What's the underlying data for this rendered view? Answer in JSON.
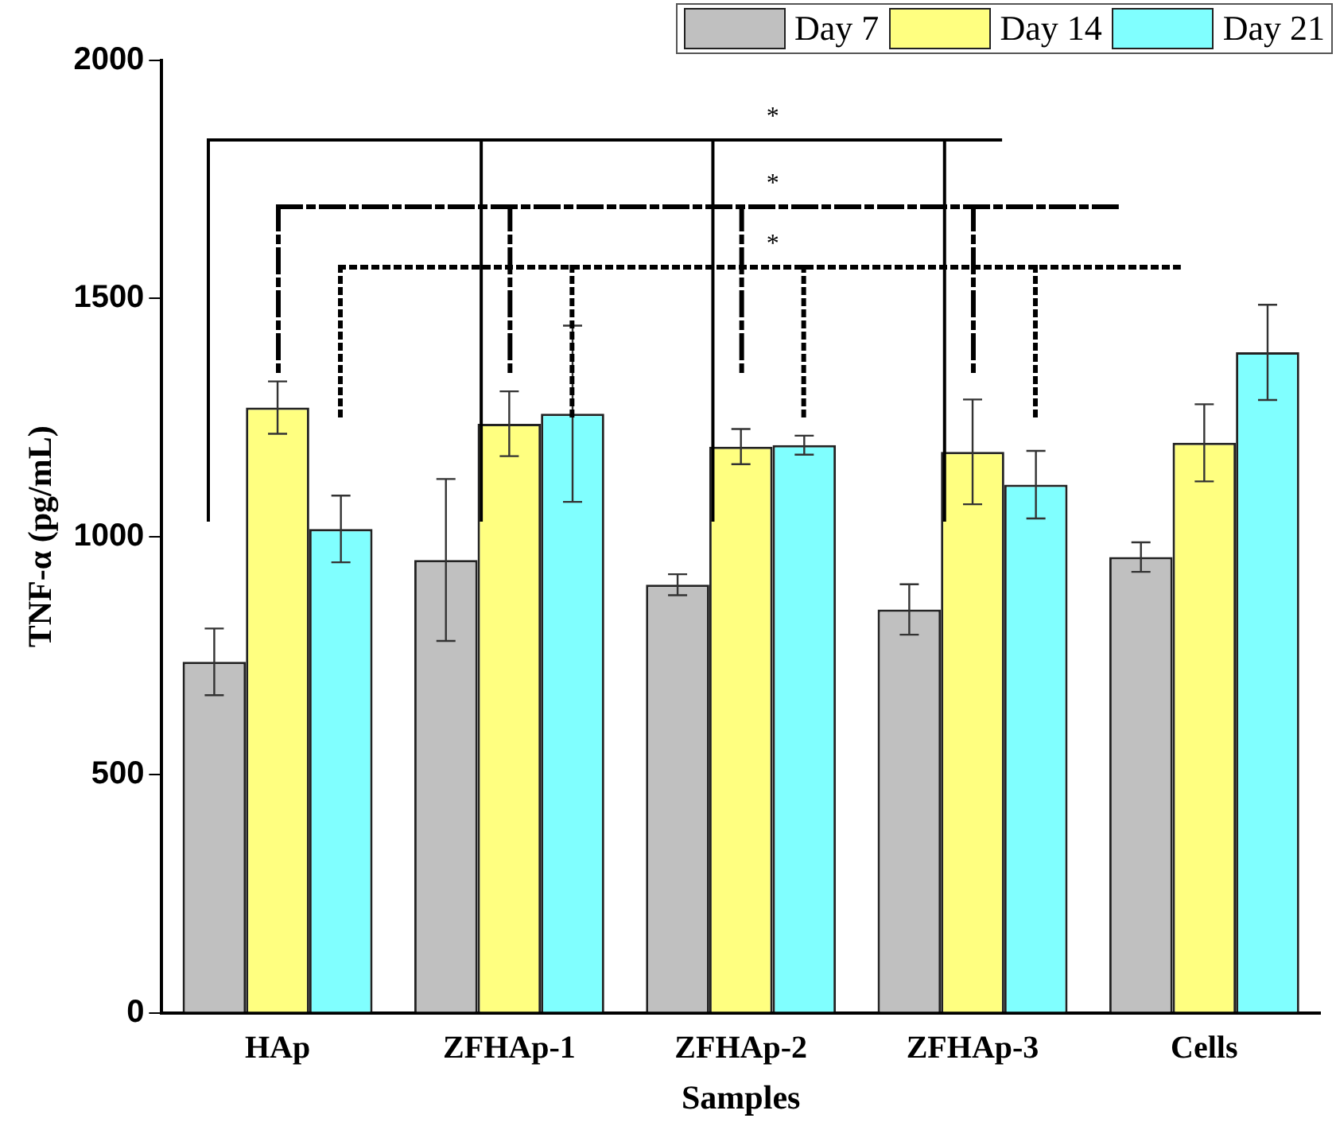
{
  "chart_data": {
    "type": "bar",
    "xlabel": "Samples",
    "ylabel": "TNF-α (pg/mL)",
    "categories": [
      "HAp",
      "ZFHAp-1",
      "ZFHAp-2",
      "ZFHAp-3",
      "Cells"
    ],
    "series": [
      {
        "name": "Day 7",
        "color": "#c0c0c0",
        "values": [
          737,
          951,
          899,
          847,
          957
        ],
        "errors": [
          70,
          170,
          22,
          53,
          31
        ]
      },
      {
        "name": "Day 14",
        "color": "#ffff80",
        "values": [
          1271,
          1237,
          1189,
          1178,
          1197
        ],
        "errors": [
          55,
          68,
          37,
          110,
          81
        ]
      },
      {
        "name": "Day 21",
        "color": "#80ffff",
        "values": [
          1016,
          1258,
          1192,
          1109,
          1387
        ],
        "errors": [
          70,
          185,
          20,
          71,
          100
        ]
      }
    ],
    "ylim": [
      0,
      2000
    ],
    "yticks": [
      0,
      500,
      1000,
      1500,
      2000
    ],
    "grid": false,
    "legend": "top right",
    "annotations": [
      "*",
      "*",
      "*"
    ]
  }
}
